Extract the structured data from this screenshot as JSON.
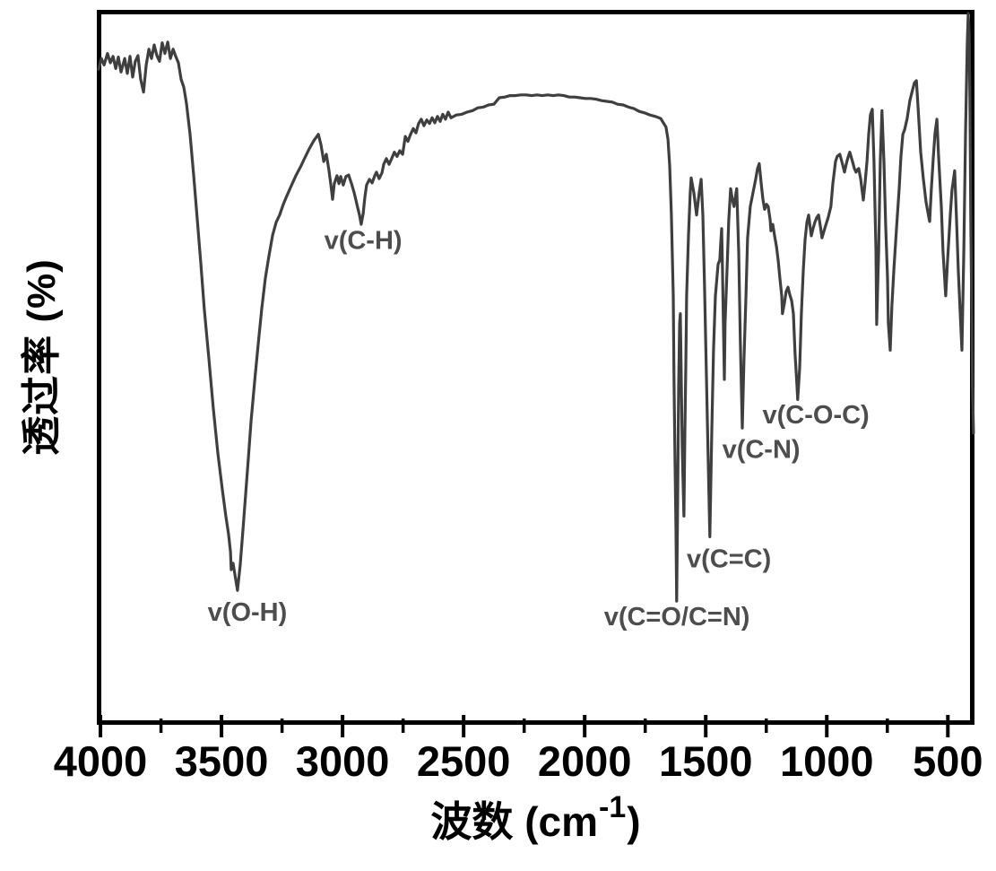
{
  "figure": {
    "background": "#ffffff",
    "frame_color": "#000000"
  },
  "chart_data": {
    "type": "line",
    "kind": "FTIR transmittance spectrum",
    "xlabel": {
      "prefix": "波数 (cm",
      "sup": "-1",
      "suffix": ")"
    },
    "ylabel": "透过率 (%)",
    "x_axis": {
      "unit": "cm-1",
      "min": 390,
      "max": 4015,
      "inverted": true,
      "major_ticks": [
        4000,
        3500,
        3000,
        2500,
        2000,
        1500,
        1000,
        500
      ],
      "minor_ticks": [
        3750,
        3250,
        2750,
        2250,
        1750,
        1250,
        750
      ]
    },
    "y_axis": {
      "unit": "% (relative, unlabeled)",
      "min": 0,
      "max": 100,
      "ticks_shown": false
    },
    "grid": false,
    "legend": false,
    "line_color": "#3f3f3f",
    "axis_color": "#000000",
    "annotation_color": "#4d4d4d",
    "annotations": [
      {
        "label": "v(O-H)",
        "wn": 3393,
        "t": 15.8
      },
      {
        "label": "v(C-H)",
        "wn": 2915,
        "t": 67.8
      },
      {
        "label": "v(C=O/C=N)",
        "wn": 1619,
        "t": 15.2
      },
      {
        "label": "v(C=C)",
        "wn": 1404,
        "t": 23.3
      },
      {
        "label": "v(C-N)",
        "wn": 1271,
        "t": 38.6
      },
      {
        "label": "v(C-O-C)",
        "wn": 1045,
        "t": 43.4
      }
    ],
    "points": [
      [
        4008,
        91.7
      ],
      [
        3996,
        93.2
      ],
      [
        3985,
        92.3
      ],
      [
        3971,
        93.9
      ],
      [
        3959,
        92.6
      ],
      [
        3948,
        93.5
      ],
      [
        3937,
        91.8
      ],
      [
        3926,
        93.4
      ],
      [
        3915,
        91.3
      ],
      [
        3900,
        93.2
      ],
      [
        3889,
        91.1
      ],
      [
        3878,
        93.5
      ],
      [
        3867,
        90.6
      ],
      [
        3856,
        92.8
      ],
      [
        3845,
        93.6
      ],
      [
        3834,
        90.3
      ],
      [
        3822,
        88.5
      ],
      [
        3811,
        92.3
      ],
      [
        3800,
        94.5
      ],
      [
        3789,
        93.2
      ],
      [
        3778,
        95.1
      ],
      [
        3767,
        93.6
      ],
      [
        3756,
        92.8
      ],
      [
        3745,
        95.4
      ],
      [
        3734,
        93.9
      ],
      [
        3722,
        95.5
      ],
      [
        3711,
        93.2
      ],
      [
        3700,
        94.5
      ],
      [
        3689,
        93.5
      ],
      [
        3678,
        92.6
      ],
      [
        3667,
        90.3
      ],
      [
        3656,
        89.2
      ],
      [
        3645,
        87.0
      ],
      [
        3630,
        82.6
      ],
      [
        3615,
        76.9
      ],
      [
        3600,
        70.6
      ],
      [
        3585,
        64.4
      ],
      [
        3571,
        58.1
      ],
      [
        3552,
        51.2
      ],
      [
        3534,
        44.3
      ],
      [
        3515,
        38.0
      ],
      [
        3497,
        33.0
      ],
      [
        3482,
        29.2
      ],
      [
        3471,
        26.7
      ],
      [
        3463,
        24.2
      ],
      [
        3460,
        21.7
      ],
      [
        3452,
        22.6
      ],
      [
        3445,
        21.1
      ],
      [
        3434,
        18.8
      ],
      [
        3423,
        22.3
      ],
      [
        3411,
        27.4
      ],
      [
        3400,
        32.4
      ],
      [
        3389,
        37.4
      ],
      [
        3378,
        42.4
      ],
      [
        3363,
        48.1
      ],
      [
        3349,
        53.1
      ],
      [
        3334,
        58.1
      ],
      [
        3319,
        62.5
      ],
      [
        3304,
        65.6
      ],
      [
        3289,
        68.5
      ],
      [
        3274,
        70.3
      ],
      [
        3260,
        71.3
      ],
      [
        3245,
        72.8
      ],
      [
        3230,
        74.0
      ],
      [
        3212,
        75.4
      ],
      [
        3193,
        76.8
      ],
      [
        3174,
        78.0
      ],
      [
        3156,
        79.3
      ],
      [
        3137,
        80.6
      ],
      [
        3119,
        81.7
      ],
      [
        3100,
        82.6
      ],
      [
        3089,
        81.1
      ],
      [
        3078,
        78.8
      ],
      [
        3067,
        79.8
      ],
      [
        3056,
        77.5
      ],
      [
        3049,
        75.7
      ],
      [
        3041,
        73.5
      ],
      [
        3034,
        75.7
      ],
      [
        3023,
        76.8
      ],
      [
        3015,
        75.7
      ],
      [
        3008,
        76.7
      ],
      [
        2997,
        75.5
      ],
      [
        2986,
        76.7
      ],
      [
        2975,
        76.9
      ],
      [
        2963,
        75.7
      ],
      [
        2952,
        74.4
      ],
      [
        2941,
        72.8
      ],
      [
        2930,
        71.3
      ],
      [
        2923,
        70.0
      ],
      [
        2915,
        71.5
      ],
      [
        2908,
        73.8
      ],
      [
        2901,
        75.5
      ],
      [
        2889,
        76.3
      ],
      [
        2878,
        75.8
      ],
      [
        2867,
        76.8
      ],
      [
        2860,
        77.3
      ],
      [
        2849,
        76.4
      ],
      [
        2837,
        77.2
      ],
      [
        2830,
        78.4
      ],
      [
        2819,
        79.2
      ],
      [
        2808,
        78.4
      ],
      [
        2797,
        79.2
      ],
      [
        2786,
        80.1
      ],
      [
        2775,
        79.5
      ],
      [
        2764,
        80.3
      ],
      [
        2752,
        79.8
      ],
      [
        2741,
        82.3
      ],
      [
        2730,
        81.6
      ],
      [
        2719,
        82.6
      ],
      [
        2708,
        83.4
      ],
      [
        2697,
        82.8
      ],
      [
        2686,
        84.1
      ],
      [
        2675,
        84.7
      ],
      [
        2664,
        83.8
      ],
      [
        2652,
        84.6
      ],
      [
        2641,
        84.1
      ],
      [
        2630,
        84.9
      ],
      [
        2619,
        84.2
      ],
      [
        2608,
        85.1
      ],
      [
        2597,
        84.4
      ],
      [
        2586,
        85.4
      ],
      [
        2575,
        84.7
      ],
      [
        2564,
        85.7
      ],
      [
        2552,
        84.9
      ],
      [
        2530,
        85.3
      ],
      [
        2508,
        85.4
      ],
      [
        2486,
        85.7
      ],
      [
        2464,
        85.9
      ],
      [
        2441,
        86.3
      ],
      [
        2419,
        86.4
      ],
      [
        2397,
        86.7
      ],
      [
        2375,
        86.8
      ],
      [
        2353,
        87.7
      ],
      [
        2330,
        87.8
      ],
      [
        2308,
        88.0
      ],
      [
        2286,
        88.0
      ],
      [
        2264,
        88.1
      ],
      [
        2241,
        88.1
      ],
      [
        2219,
        88.0
      ],
      [
        2197,
        88.1
      ],
      [
        2175,
        88.0
      ],
      [
        2153,
        88.1
      ],
      [
        2130,
        88.0
      ],
      [
        2108,
        88.1
      ],
      [
        2086,
        88.0
      ],
      [
        2064,
        87.8
      ],
      [
        2041,
        87.8
      ],
      [
        2019,
        87.7
      ],
      [
        1997,
        87.6
      ],
      [
        1975,
        87.6
      ],
      [
        1953,
        87.5
      ],
      [
        1930,
        87.3
      ],
      [
        1908,
        87.2
      ],
      [
        1886,
        87.1
      ],
      [
        1864,
        86.8
      ],
      [
        1841,
        86.7
      ],
      [
        1819,
        86.4
      ],
      [
        1797,
        86.2
      ],
      [
        1775,
        85.8
      ],
      [
        1753,
        85.6
      ],
      [
        1730,
        85.3
      ],
      [
        1708,
        85.1
      ],
      [
        1686,
        84.8
      ],
      [
        1664,
        83.6
      ],
      [
        1656,
        81.9
      ],
      [
        1649,
        78.2
      ],
      [
        1642,
        71.3
      ],
      [
        1634,
        60.0
      ],
      [
        1631,
        48.7
      ],
      [
        1627,
        37.4
      ],
      [
        1623,
        27.4
      ],
      [
        1620,
        17.3
      ],
      [
        1616,
        31.1
      ],
      [
        1612,
        47.4
      ],
      [
        1608,
        56.2
      ],
      [
        1605,
        57.5
      ],
      [
        1601,
        48.7
      ],
      [
        1597,
        38.6
      ],
      [
        1590,
        29.2
      ],
      [
        1586,
        41.2
      ],
      [
        1582,
        51.2
      ],
      [
        1579,
        60.0
      ],
      [
        1571,
        68.5
      ],
      [
        1564,
        74.4
      ],
      [
        1560,
        76.5
      ],
      [
        1549,
        74.4
      ],
      [
        1538,
        71.3
      ],
      [
        1527,
        74.4
      ],
      [
        1519,
        76.3
      ],
      [
        1512,
        71.3
      ],
      [
        1505,
        61.2
      ],
      [
        1497,
        48.7
      ],
      [
        1490,
        37.4
      ],
      [
        1483,
        26.3
      ],
      [
        1475,
        41.2
      ],
      [
        1468,
        52.4
      ],
      [
        1460,
        60.0
      ],
      [
        1449,
        64.4
      ],
      [
        1442,
        65.0
      ],
      [
        1438,
        67.5
      ],
      [
        1434,
        69.4
      ],
      [
        1431,
        63.7
      ],
      [
        1427,
        56.2
      ],
      [
        1423,
        48.3
      ],
      [
        1420,
        56.2
      ],
      [
        1412,
        63.7
      ],
      [
        1405,
        70.6
      ],
      [
        1397,
        75.0
      ],
      [
        1390,
        73.5
      ],
      [
        1383,
        72.5
      ],
      [
        1375,
        74.4
      ],
      [
        1372,
        75.0
      ],
      [
        1364,
        66.2
      ],
      [
        1357,
        53.7
      ],
      [
        1349,
        41.5
      ],
      [
        1342,
        51.2
      ],
      [
        1334,
        60.0
      ],
      [
        1327,
        68.1
      ],
      [
        1316,
        72.5
      ],
      [
        1305,
        74.4
      ],
      [
        1294,
        76.3
      ],
      [
        1286,
        77.8
      ],
      [
        1279,
        78.5
      ],
      [
        1271,
        75.7
      ],
      [
        1264,
        73.5
      ],
      [
        1257,
        72.1
      ],
      [
        1249,
        72.8
      ],
      [
        1242,
        72.5
      ],
      [
        1234,
        70.6
      ],
      [
        1231,
        69.1
      ],
      [
        1223,
        70.0
      ],
      [
        1216,
        68.5
      ],
      [
        1208,
        66.9
      ],
      [
        1201,
        65.0
      ],
      [
        1194,
        62.5
      ],
      [
        1186,
        60.0
      ],
      [
        1183,
        57.5
      ],
      [
        1175,
        59.0
      ],
      [
        1168,
        60.6
      ],
      [
        1160,
        61.2
      ],
      [
        1153,
        60.2
      ],
      [
        1145,
        59.3
      ],
      [
        1138,
        57.5
      ],
      [
        1131,
        51.8
      ],
      [
        1123,
        47.4
      ],
      [
        1120,
        45.5
      ],
      [
        1112,
        49.9
      ],
      [
        1105,
        57.5
      ],
      [
        1097,
        63.7
      ],
      [
        1090,
        67.8
      ],
      [
        1082,
        70.3
      ],
      [
        1075,
        71.3
      ],
      [
        1068,
        69.4
      ],
      [
        1064,
        68.4
      ],
      [
        1057,
        69.4
      ],
      [
        1049,
        70.3
      ],
      [
        1042,
        70.9
      ],
      [
        1034,
        71.3
      ],
      [
        1027,
        69.8
      ],
      [
        1020,
        68.1
      ],
      [
        1012,
        69.0
      ],
      [
        1005,
        69.8
      ],
      [
        994,
        71.0
      ],
      [
        983,
        72.5
      ],
      [
        975,
        75.7
      ],
      [
        964,
        78.8
      ],
      [
        957,
        79.5
      ],
      [
        946,
        79.8
      ],
      [
        938,
        78.8
      ],
      [
        927,
        77.3
      ],
      [
        920,
        78.4
      ],
      [
        912,
        79.4
      ],
      [
        905,
        80.1
      ],
      [
        894,
        78.8
      ],
      [
        886,
        77.8
      ],
      [
        879,
        77.3
      ],
      [
        872,
        77.7
      ],
      [
        868,
        77.8
      ],
      [
        860,
        76.3
      ],
      [
        849,
        73.4
      ],
      [
        842,
        75.7
      ],
      [
        834,
        78.8
      ],
      [
        827,
        82.6
      ],
      [
        820,
        85.3
      ],
      [
        812,
        86.1
      ],
      [
        805,
        78.8
      ],
      [
        797,
        66.2
      ],
      [
        794,
        56.0
      ],
      [
        786,
        66.2
      ],
      [
        779,
        78.8
      ],
      [
        772,
        85.9
      ],
      [
        764,
        78.8
      ],
      [
        757,
        70.0
      ],
      [
        749,
        62.5
      ],
      [
        746,
        56.2
      ],
      [
        738,
        52.4
      ],
      [
        731,
        58.7
      ],
      [
        723,
        63.7
      ],
      [
        712,
        69.4
      ],
      [
        701,
        75.0
      ],
      [
        694,
        79.4
      ],
      [
        686,
        82.6
      ],
      [
        679,
        83.2
      ],
      [
        668,
        84.8
      ],
      [
        657,
        87.3
      ],
      [
        646,
        88.8
      ],
      [
        638,
        89.8
      ],
      [
        630,
        90.1
      ],
      [
        623,
        86.3
      ],
      [
        612,
        80.1
      ],
      [
        601,
        76.3
      ],
      [
        590,
        73.1
      ],
      [
        579,
        71.0
      ],
      [
        575,
        70.4
      ],
      [
        568,
        75.0
      ],
      [
        560,
        79.4
      ],
      [
        553,
        82.8
      ],
      [
        545,
        84.7
      ],
      [
        538,
        79.4
      ],
      [
        527,
        72.5
      ],
      [
        520,
        66.2
      ],
      [
        509,
        60.0
      ],
      [
        501,
        65.0
      ],
      [
        490,
        71.3
      ],
      [
        483,
        74.8
      ],
      [
        472,
        77.5
      ],
      [
        464,
        70.6
      ],
      [
        457,
        63.7
      ],
      [
        449,
        57.5
      ],
      [
        442,
        52.4
      ],
      [
        434,
        66.2
      ],
      [
        427,
        82.6
      ],
      [
        420,
        95.1
      ],
      [
        416,
        99.5
      ],
      [
        412,
        96.4
      ],
      [
        409,
        87.6
      ],
      [
        405,
        70.0
      ],
      [
        401,
        57.5
      ],
      [
        398,
        47.4
      ],
      [
        394,
        40.8
      ]
    ]
  }
}
